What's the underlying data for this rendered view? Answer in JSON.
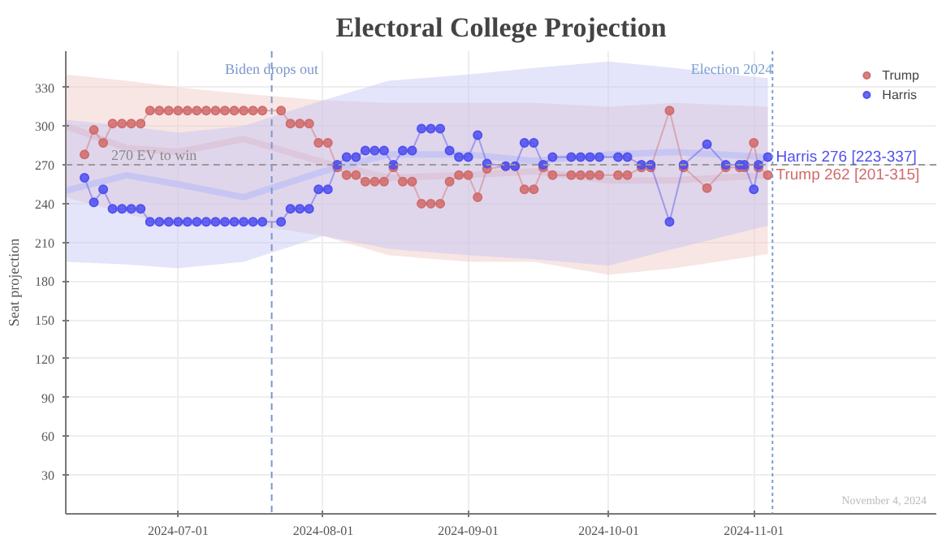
{
  "chart_data": {
    "type": "line",
    "title": "Electoral College Projection",
    "ylabel": "Seat projection",
    "x": [
      "2024-06-11",
      "2024-06-13",
      "2024-06-15",
      "2024-06-17",
      "2024-06-19",
      "2024-06-21",
      "2024-06-23",
      "2024-06-25",
      "2024-06-27",
      "2024-06-29",
      "2024-07-01",
      "2024-07-03",
      "2024-07-05",
      "2024-07-07",
      "2024-07-09",
      "2024-07-11",
      "2024-07-13",
      "2024-07-15",
      "2024-07-17",
      "2024-07-19",
      "2024-07-23",
      "2024-07-25",
      "2024-07-27",
      "2024-07-29",
      "2024-07-31",
      "2024-08-02",
      "2024-08-04",
      "2024-08-06",
      "2024-08-08",
      "2024-08-10",
      "2024-08-12",
      "2024-08-14",
      "2024-08-16",
      "2024-08-18",
      "2024-08-20",
      "2024-08-22",
      "2024-08-24",
      "2024-08-26",
      "2024-08-28",
      "2024-08-30",
      "2024-09-01",
      "2024-09-03",
      "2024-09-05",
      "2024-09-09",
      "2024-09-11",
      "2024-09-13",
      "2024-09-15",
      "2024-09-17",
      "2024-09-19",
      "2024-09-23",
      "2024-09-25",
      "2024-09-27",
      "2024-09-29",
      "2024-10-03",
      "2024-10-05",
      "2024-10-08",
      "2024-10-10",
      "2024-10-14",
      "2024-10-17",
      "2024-10-22",
      "2024-10-26",
      "2024-10-29",
      "2024-10-30",
      "2024-11-01",
      "2024-11-02",
      "2024-11-04"
    ],
    "series": [
      {
        "type": "line",
        "color": "#f0c8c4",
        "x": [
          "2024-06-07",
          "2024-06-20",
          "2024-07-01",
          "2024-07-15",
          "2024-08-01",
          "2024-08-15",
          "2024-09-01",
          "2024-09-15",
          "2024-10-01",
          "2024-10-15",
          "2024-11-04"
        ],
        "values": [
          300,
          283,
          280,
          290,
          272,
          260,
          262,
          265,
          258,
          258,
          262
        ],
        "lower": [
          245,
          232,
          222,
          225,
          215,
          200,
          195,
          195,
          185,
          190,
          201
        ],
        "upper": [
          340,
          335,
          330,
          325,
          320,
          318,
          318,
          318,
          315,
          318,
          315
        ]
      },
      {
        "type": "line",
        "color": "#c4c4f4",
        "x": [
          "2024-06-07",
          "2024-06-20",
          "2024-07-01",
          "2024-07-15",
          "2024-08-01",
          "2024-08-15",
          "2024-09-01",
          "2024-09-15",
          "2024-10-01",
          "2024-10-15",
          "2024-11-04"
        ],
        "values": [
          250,
          262,
          255,
          245,
          265,
          278,
          278,
          273,
          278,
          280,
          276
        ],
        "lower": [
          195,
          193,
          190,
          195,
          215,
          205,
          200,
          197,
          192,
          205,
          223
        ],
        "upper": [
          305,
          300,
          295,
          300,
          320,
          335,
          340,
          345,
          350,
          345,
          337
        ]
      },
      {
        "name": "Trump",
        "color": "#d06c6c",
        "marker": "circle",
        "values": [
          278,
          297,
          287,
          302,
          302,
          302,
          302,
          312,
          312,
          312,
          312,
          312,
          312,
          312,
          312,
          312,
          312,
          312,
          312,
          312,
          312,
          302,
          302,
          302,
          287,
          287,
          268,
          262,
          262,
          257,
          257,
          257,
          268,
          257,
          257,
          240,
          240,
          240,
          257,
          262,
          262,
          245,
          267,
          269,
          269,
          251,
          251,
          268,
          262,
          262,
          262,
          262,
          262,
          262,
          262,
          268,
          268,
          312,
          268,
          252,
          268,
          268,
          268,
          287,
          268,
          262
        ]
      },
      {
        "name": "Harris",
        "color": "#5050f0",
        "marker": "circle",
        "values": [
          260,
          241,
          251,
          236,
          236,
          236,
          236,
          226,
          226,
          226,
          226,
          226,
          226,
          226,
          226,
          226,
          226,
          226,
          226,
          226,
          226,
          236,
          236,
          236,
          251,
          251,
          270,
          276,
          276,
          281,
          281,
          281,
          270,
          281,
          281,
          298,
          298,
          298,
          281,
          276,
          276,
          293,
          271,
          269,
          269,
          287,
          287,
          270,
          276,
          276,
          276,
          276,
          276,
          276,
          276,
          270,
          270,
          226,
          270,
          286,
          270,
          270,
          270,
          251,
          270,
          276
        ]
      }
    ],
    "xlim": [
      "2024-06-07",
      "2024-12-10"
    ],
    "xticks": [
      "2024-07-01",
      "2024-08-01",
      "2024-09-01",
      "2024-10-01",
      "2024-11-01"
    ],
    "ylim": [
      0,
      358
    ],
    "yticks": [
      30,
      60,
      90,
      120,
      150,
      180,
      210,
      240,
      270,
      300,
      330
    ],
    "ref_lines": [
      {
        "axis": "y",
        "value": 270,
        "label": "270 EV to win",
        "color": "#999999",
        "line_style": "dashed"
      },
      {
        "axis": "x",
        "value": "2024-07-21",
        "label": "Biden drops out",
        "color": "#7b96cc",
        "line_style": "dashed"
      },
      {
        "axis": "x",
        "value": "2024-11-05",
        "label": "Election 2024",
        "color": "#7b9fd0",
        "line_style": "dotted"
      }
    ],
    "annotations": [
      {
        "text": "Harris 276 [223-337]",
        "x": "2024-11-04",
        "y": 276
      },
      {
        "text": "Trump 262 [201-315]",
        "x": "2024-11-04",
        "y": 262
      },
      "November 4, 2024"
    ],
    "grid": true,
    "legend": "top right"
  }
}
